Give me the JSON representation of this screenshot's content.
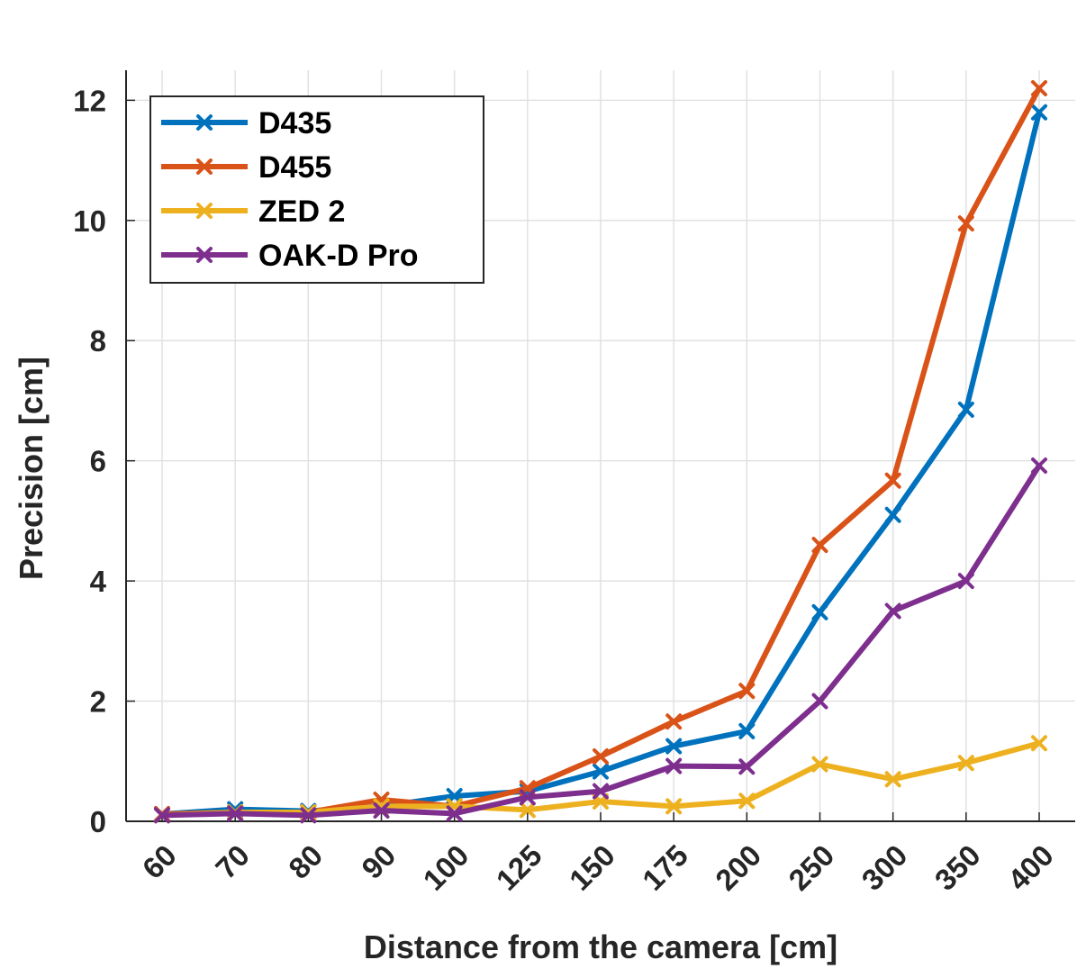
{
  "chart_data": {
    "type": "line",
    "title": "",
    "xlabel": "Distance from the camera [cm]",
    "ylabel": "Precision [cm]",
    "categories": [
      "60",
      "70",
      "80",
      "90",
      "100",
      "125",
      "150",
      "175",
      "200",
      "250",
      "300",
      "350",
      "400"
    ],
    "ylim": [
      0,
      12.5
    ],
    "yticks": [
      "0",
      "2",
      "4",
      "6",
      "8",
      "10",
      "12"
    ],
    "grid": true,
    "legend_position": "top-left",
    "series": [
      {
        "name": "D435",
        "color": "#0072BD",
        "values": [
          0.12,
          0.2,
          0.17,
          0.25,
          0.42,
          0.5,
          0.83,
          1.25,
          1.5,
          3.48,
          5.1,
          6.85,
          11.8
        ]
      },
      {
        "name": "D455",
        "color": "#D95319",
        "values": [
          0.12,
          0.15,
          0.15,
          0.36,
          0.25,
          0.55,
          1.08,
          1.66,
          2.17,
          4.6,
          5.67,
          9.95,
          12.2
        ]
      },
      {
        "name": "ZED 2",
        "color": "#EDB120",
        "values": [
          0.1,
          0.15,
          0.15,
          0.25,
          0.25,
          0.19,
          0.33,
          0.25,
          0.34,
          0.95,
          0.7,
          0.97,
          1.3
        ]
      },
      {
        "name": "OAK-D Pro",
        "color": "#7E2F8E",
        "values": [
          0.1,
          0.13,
          0.1,
          0.18,
          0.13,
          0.4,
          0.5,
          0.92,
          0.91,
          2.0,
          3.5,
          4.0,
          5.92
        ]
      }
    ]
  }
}
